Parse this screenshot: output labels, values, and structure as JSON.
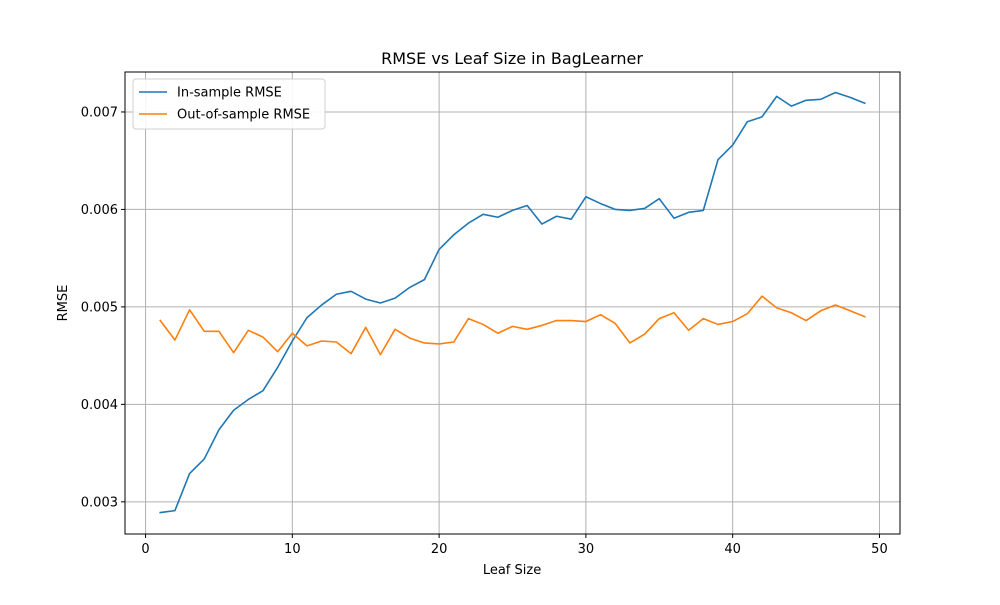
{
  "chart_data": {
    "type": "line",
    "title": "RMSE vs Leaf Size in BagLearner",
    "xlabel": "Leaf Size",
    "ylabel": "RMSE",
    "xlim": [
      -1.4,
      51.4
    ],
    "ylim": [
      0.00267,
      0.00741
    ],
    "xticks": [
      0,
      10,
      20,
      30,
      40,
      50
    ],
    "xtick_labels": [
      "0",
      "10",
      "20",
      "30",
      "40",
      "50"
    ],
    "yticks": [
      0.003,
      0.004,
      0.005,
      0.006,
      0.007
    ],
    "ytick_labels": [
      "0.003",
      "0.004",
      "0.005",
      "0.006",
      "0.007"
    ],
    "grid": true,
    "legend_position": "upper left",
    "x": [
      1,
      2,
      3,
      4,
      5,
      6,
      7,
      8,
      9,
      10,
      11,
      12,
      13,
      14,
      15,
      16,
      17,
      18,
      19,
      20,
      21,
      22,
      23,
      24,
      25,
      26,
      27,
      28,
      29,
      30,
      31,
      32,
      33,
      34,
      35,
      36,
      37,
      38,
      39,
      40,
      41,
      42,
      43,
      44,
      45,
      46,
      47,
      48,
      49
    ],
    "series": [
      {
        "name": "In-sample RMSE",
        "color": "#1f77b4",
        "values": [
          0.00289,
          0.00291,
          0.00329,
          0.00344,
          0.00374,
          0.00394,
          0.00405,
          0.00414,
          0.00438,
          0.00465,
          0.00489,
          0.00502,
          0.00513,
          0.00516,
          0.00508,
          0.00504,
          0.00509,
          0.0052,
          0.00528,
          0.00559,
          0.00574,
          0.00586,
          0.00595,
          0.00592,
          0.00599,
          0.00604,
          0.00585,
          0.00593,
          0.0059,
          0.00613,
          0.00606,
          0.006,
          0.00599,
          0.00601,
          0.00611,
          0.00591,
          0.00597,
          0.00599,
          0.00651,
          0.00666,
          0.0069,
          0.00695,
          0.00716,
          0.00706,
          0.00712,
          0.00713,
          0.0072,
          0.00715,
          0.00709
        ]
      },
      {
        "name": "Out-of-sample RMSE",
        "color": "#ff7f0e",
        "values": [
          0.00486,
          0.00466,
          0.00497,
          0.00475,
          0.00475,
          0.00453,
          0.00476,
          0.00469,
          0.00454,
          0.00473,
          0.0046,
          0.00465,
          0.00464,
          0.00452,
          0.00479,
          0.00451,
          0.00477,
          0.00468,
          0.00463,
          0.00462,
          0.00464,
          0.00488,
          0.00482,
          0.00473,
          0.0048,
          0.00477,
          0.00481,
          0.00486,
          0.00486,
          0.00485,
          0.00492,
          0.00483,
          0.00463,
          0.00472,
          0.00488,
          0.00494,
          0.00476,
          0.00488,
          0.00482,
          0.00485,
          0.00493,
          0.00511,
          0.00499,
          0.00494,
          0.00486,
          0.00496,
          0.00502,
          0.00496,
          0.0049
        ]
      }
    ]
  }
}
